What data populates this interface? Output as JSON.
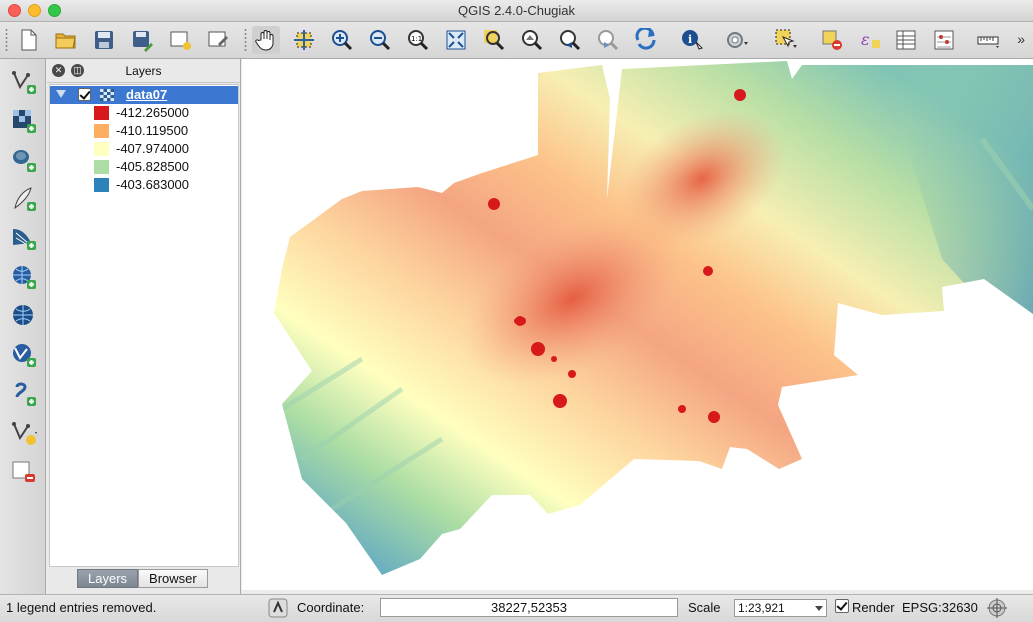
{
  "window": {
    "title": "QGIS 2.4.0-Chugiak"
  },
  "toolbar": {
    "icons": [
      "new-project-icon",
      "open-project-icon",
      "save-project-icon",
      "save-as-icon",
      "new-print-composer-icon",
      "composer-manager-icon",
      "pan-icon",
      "pan-to-selection-icon",
      "zoom-in-icon",
      "zoom-out-icon",
      "zoom-native-icon",
      "zoom-full-icon",
      "zoom-to-selection-icon",
      "zoom-to-layer-icon",
      "zoom-last-icon",
      "zoom-next-icon",
      "refresh-icon",
      "identify-icon",
      "action-icon",
      "select-icon",
      "deselect-icon",
      "expression-select-icon",
      "attribute-table-icon",
      "statistics-icon",
      "measure-icon"
    ],
    "overflow": "»"
  },
  "left_toolbar": {
    "icons": [
      "add-vector-layer-icon",
      "add-raster-layer-icon",
      "add-postgis-layer-icon",
      "add-spatialite-layer-icon",
      "add-mssql-layer-icon",
      "add-wms-layer-icon",
      "add-wcs-layer-icon",
      "add-wfs-layer-icon",
      "add-delimited-text-icon",
      "new-vector-layer-icon",
      "remove-layer-icon"
    ]
  },
  "layers_panel": {
    "title": "Layers",
    "layer": {
      "name": "data07",
      "checked": true
    },
    "legend": [
      {
        "label": "-412.265000",
        "color": "#d7191c"
      },
      {
        "label": "-410.119500",
        "color": "#fdae61"
      },
      {
        "label": "-407.974000",
        "color": "#ffffbf"
      },
      {
        "label": "-405.828500",
        "color": "#abdda4"
      },
      {
        "label": "-403.683000",
        "color": "#2b83ba"
      }
    ],
    "tabs": [
      {
        "label": "Layers",
        "active": true
      },
      {
        "label": "Browser",
        "active": false
      }
    ]
  },
  "status_bar": {
    "message": "1 legend entries removed.",
    "coordinate_label": "Coordinate:",
    "coordinate_value": "38227,52353",
    "scale_label": "Scale",
    "scale_value": "1:23,921",
    "render_label": "Render",
    "render_checked": true,
    "crs": "EPSG:32630"
  }
}
